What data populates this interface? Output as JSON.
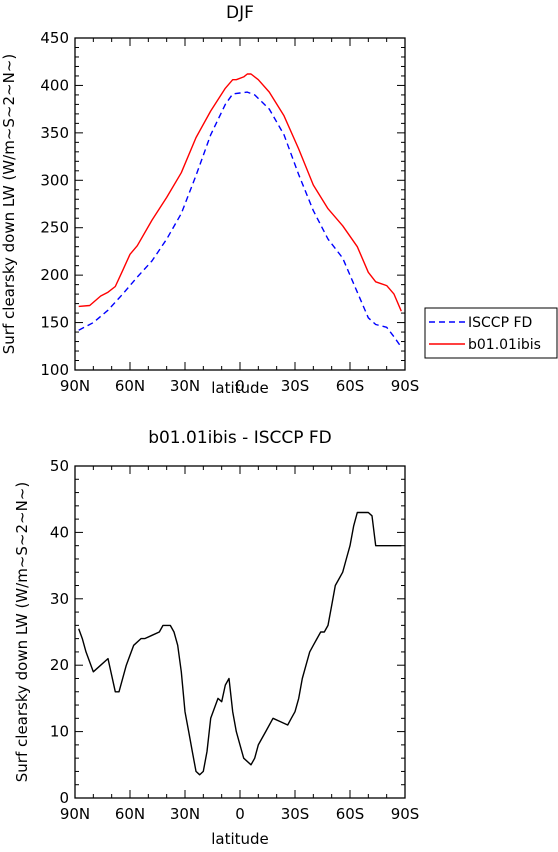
{
  "chart_data": [
    {
      "type": "line",
      "title": "DJF",
      "xlabel": "latitude",
      "ylabel": "Surf clearsky down LW (W/m~S~2~N~)",
      "xlim": [
        -90,
        90
      ],
      "ylim": [
        100,
        450
      ],
      "x_ticks": [
        -90,
        -60,
        -30,
        0,
        30,
        60,
        90
      ],
      "x_tick_labels": [
        "90N",
        "60N",
        "30N",
        "0",
        "30S",
        "60S",
        "90S"
      ],
      "y_ticks": [
        100,
        150,
        200,
        250,
        300,
        350,
        400,
        450
      ],
      "y_tick_labels": [
        "100",
        "150",
        "200",
        "250",
        "300",
        "350",
        "400",
        "450"
      ],
      "legend_position": "right",
      "series": [
        {
          "name": "ISCCP FD",
          "color": "#0000ff",
          "dash": "dashed",
          "x": [
            -88,
            -80,
            -72,
            -64,
            -56,
            -48,
            -40,
            -32,
            -24,
            -16,
            -8,
            -4,
            0,
            4,
            8,
            16,
            24,
            32,
            40,
            48,
            56,
            64,
            70,
            74,
            80,
            84,
            88
          ],
          "y": [
            142,
            150,
            163,
            180,
            198,
            215,
            238,
            265,
            305,
            348,
            380,
            391,
            392,
            393,
            390,
            375,
            348,
            306,
            268,
            238,
            218,
            182,
            155,
            148,
            145,
            135,
            124
          ]
        },
        {
          "name": "b01.01ibis",
          "color": "#ff0000",
          "dash": "solid",
          "x": [
            -88,
            -82,
            -76,
            -72,
            -68,
            -64,
            -60,
            -56,
            -48,
            -40,
            -32,
            -24,
            -16,
            -8,
            -4,
            -2,
            2,
            4,
            6,
            10,
            16,
            24,
            32,
            40,
            48,
            56,
            64,
            70,
            74,
            80,
            84,
            88
          ],
          "y": [
            167,
            168,
            178,
            182,
            188,
            205,
            222,
            231,
            258,
            282,
            308,
            345,
            373,
            397,
            406,
            406,
            409,
            412,
            412,
            406,
            393,
            368,
            333,
            295,
            270,
            252,
            230,
            203,
            193,
            189,
            180,
            162
          ]
        }
      ]
    },
    {
      "type": "line",
      "title": "b01.01ibis - ISCCP FD",
      "xlabel": "latitude",
      "ylabel": "Surf clearsky down LW (W/m~S~2~N~)",
      "xlim": [
        -90,
        90
      ],
      "ylim": [
        0,
        50
      ],
      "x_ticks": [
        -90,
        -60,
        -30,
        0,
        30,
        60,
        90
      ],
      "x_tick_labels": [
        "90N",
        "60N",
        "30N",
        "0",
        "30S",
        "60S",
        "90S"
      ],
      "y_ticks": [
        0,
        10,
        20,
        30,
        40,
        50
      ],
      "y_tick_labels": [
        "0",
        "10",
        "20",
        "30",
        "40",
        "50"
      ],
      "series": [
        {
          "color": "#000000",
          "dash": "solid",
          "x": [
            -88,
            -86,
            -84,
            -80,
            -76,
            -72,
            -68,
            -66,
            -62,
            -58,
            -54,
            -52,
            -48,
            -44,
            -42,
            -40,
            -38,
            -36,
            -34,
            -32,
            -30,
            -28,
            -26,
            -24,
            -22,
            -20,
            -18,
            -16,
            -12,
            -10,
            -8,
            -6,
            -4,
            -2,
            0,
            2,
            6,
            8,
            10,
            14,
            18,
            22,
            26,
            28,
            30,
            32,
            34,
            36,
            38,
            40,
            42,
            44,
            46,
            48,
            50,
            52,
            54,
            56,
            58,
            60,
            62,
            64,
            66,
            68,
            70,
            72,
            74,
            76,
            78,
            80,
            84,
            88
          ],
          "y": [
            25.5,
            24,
            22,
            19,
            20,
            21,
            16,
            16,
            20,
            23,
            24,
            24,
            24.5,
            25,
            26,
            26,
            26,
            25,
            23,
            19,
            13,
            10,
            7,
            4,
            3.5,
            4,
            7,
            12,
            15,
            14.5,
            17,
            18,
            13,
            10,
            8,
            6,
            5,
            6,
            8,
            10,
            12,
            11.5,
            11,
            12,
            13,
            15,
            18,
            20,
            22,
            23,
            24,
            25,
            25,
            26,
            29,
            32,
            33,
            34,
            36,
            38,
            41,
            43,
            43,
            43,
            43,
            42.5,
            38,
            38,
            38,
            38,
            38,
            38
          ],
          "y_note": "values read from curve"
        }
      ]
    }
  ]
}
